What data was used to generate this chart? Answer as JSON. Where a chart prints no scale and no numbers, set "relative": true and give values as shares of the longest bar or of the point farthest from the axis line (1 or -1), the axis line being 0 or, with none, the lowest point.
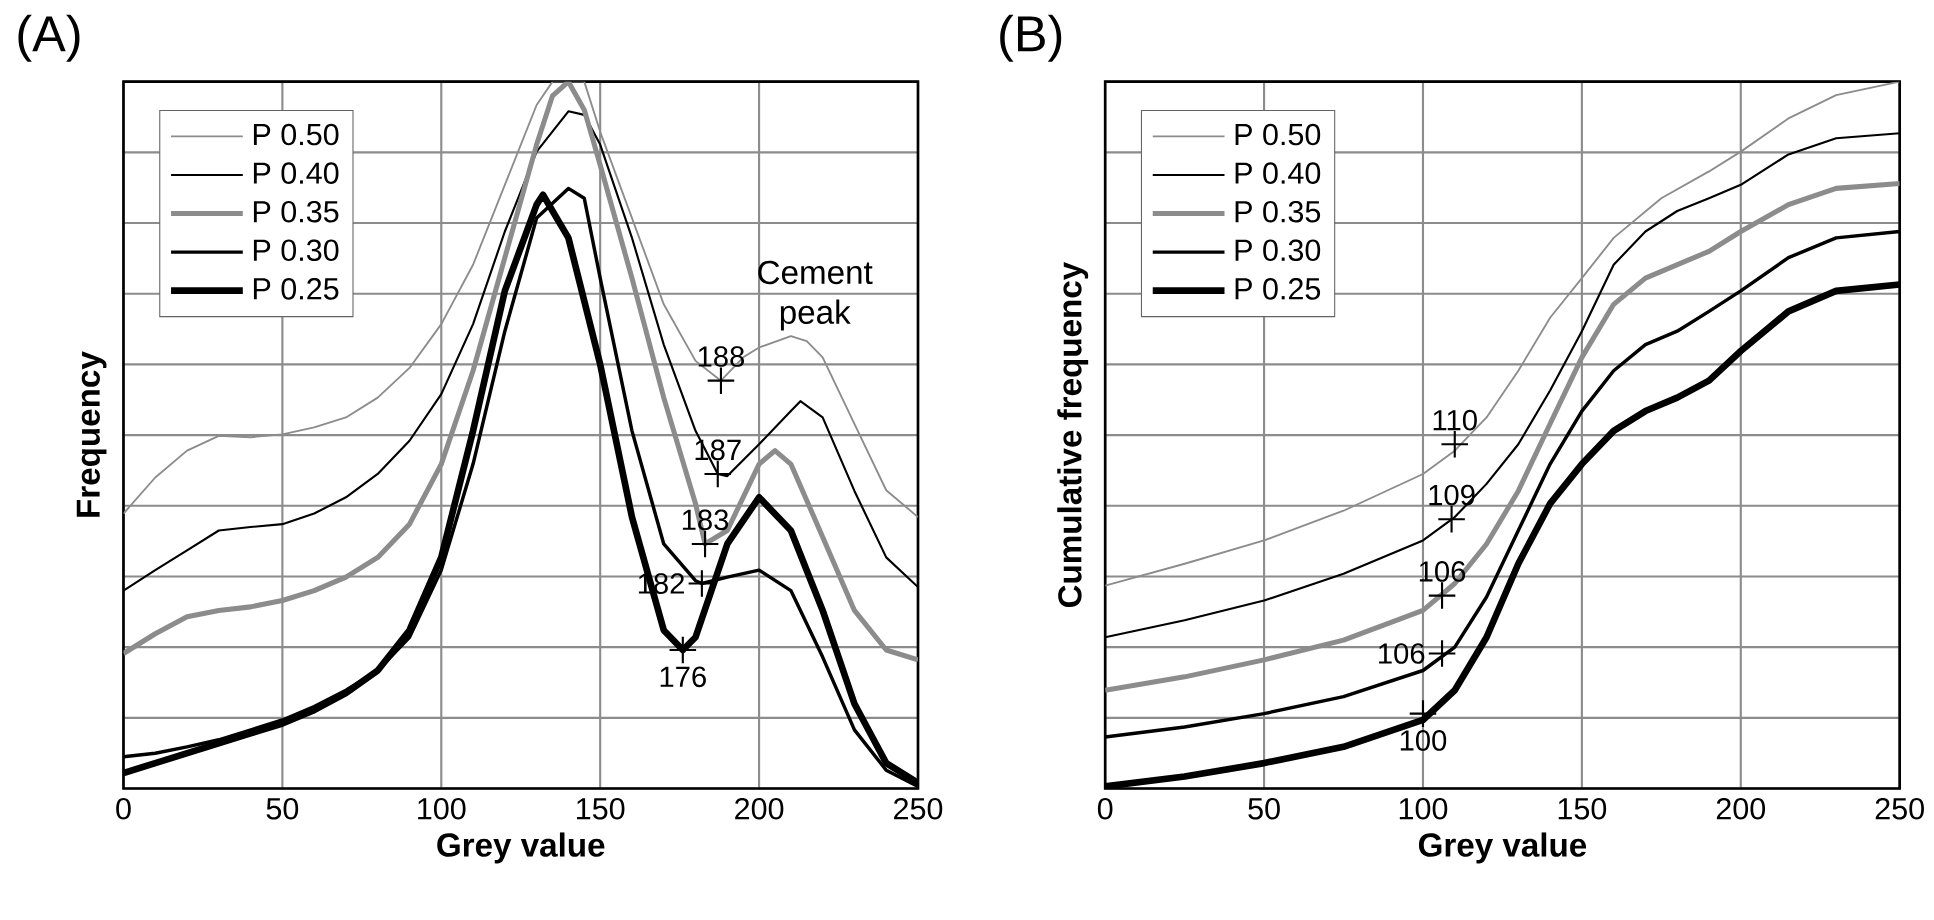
{
  "chart_data": [
    {
      "type": "line",
      "title": "(A)",
      "xlabel": "Grey value",
      "ylabel": "Frequency",
      "relative": true,
      "grid": true,
      "legend": "top left",
      "tick_labels": "x",
      "xlim": [
        0,
        250
      ],
      "xticks": [
        0,
        50,
        100,
        150,
        200,
        250
      ],
      "series": [
        {
          "name": "P 0.50",
          "color": "#8c8c8c",
          "x": [
            0,
            10,
            20,
            30,
            40,
            50,
            60,
            70,
            80,
            90,
            100,
            110,
            120,
            130,
            135,
            140,
            145,
            150,
            160,
            170,
            180,
            188,
            195,
            200,
            210,
            215,
            220,
            230,
            240,
            250
          ],
          "values": [
            0.389,
            0.44,
            0.478,
            0.499,
            0.497,
            0.501,
            0.511,
            0.525,
            0.553,
            0.595,
            0.657,
            0.741,
            0.854,
            0.967,
            1.0,
            1.0,
            1.0,
            0.929,
            0.807,
            0.685,
            0.605,
            0.577,
            0.61,
            0.624,
            0.64,
            0.633,
            0.61,
            0.516,
            0.422,
            0.384
          ]
        },
        {
          "name": "P 0.40",
          "color": "#000000",
          "x": [
            0,
            10,
            20,
            30,
            40,
            50,
            60,
            70,
            80,
            90,
            100,
            110,
            120,
            130,
            140,
            145,
            150,
            160,
            170,
            180,
            187,
            190,
            200,
            210,
            213,
            220,
            230,
            240,
            250
          ],
          "values": [
            0.28,
            0.309,
            0.337,
            0.365,
            0.37,
            0.374,
            0.389,
            0.412,
            0.445,
            0.492,
            0.558,
            0.657,
            0.788,
            0.901,
            0.958,
            0.953,
            0.911,
            0.779,
            0.628,
            0.506,
            0.445,
            0.442,
            0.487,
            0.534,
            0.548,
            0.525,
            0.421,
            0.327,
            0.285
          ]
        },
        {
          "name": "P 0.35",
          "color": "#8c8c8c",
          "x": [
            0,
            10,
            20,
            30,
            40,
            50,
            60,
            70,
            80,
            90,
            100,
            110,
            120,
            130,
            135,
            140,
            145,
            150,
            160,
            170,
            180,
            183,
            190,
            200,
            205,
            210,
            220,
            230,
            240,
            250
          ],
          "values": [
            0.191,
            0.219,
            0.243,
            0.252,
            0.257,
            0.266,
            0.28,
            0.299,
            0.327,
            0.374,
            0.459,
            0.591,
            0.751,
            0.911,
            0.98,
            1.0,
            0.96,
            0.882,
            0.722,
            0.553,
            0.403,
            0.346,
            0.365,
            0.459,
            0.478,
            0.459,
            0.356,
            0.252,
            0.196,
            0.182
          ]
        },
        {
          "name": "P 0.30",
          "color": "#000000",
          "x": [
            0,
            10,
            20,
            30,
            40,
            50,
            60,
            70,
            80,
            90,
            100,
            110,
            120,
            130,
            140,
            145,
            150,
            160,
            170,
            180,
            182,
            190,
            200,
            210,
            220,
            230,
            240,
            250
          ],
          "values": [
            0.045,
            0.05,
            0.059,
            0.069,
            0.083,
            0.097,
            0.116,
            0.139,
            0.167,
            0.214,
            0.309,
            0.459,
            0.647,
            0.807,
            0.849,
            0.835,
            0.722,
            0.506,
            0.346,
            0.294,
            0.29,
            0.299,
            0.309,
            0.28,
            0.186,
            0.083,
            0.026,
            0.003
          ]
        },
        {
          "name": "P 0.25",
          "color": "#000000",
          "x": [
            0,
            10,
            20,
            30,
            40,
            50,
            60,
            70,
            80,
            90,
            100,
            110,
            120,
            130,
            132,
            140,
            150,
            160,
            170,
            176,
            180,
            190,
            200,
            210,
            220,
            230,
            240,
            250
          ],
          "values": [
            0.022,
            0.036,
            0.05,
            0.064,
            0.078,
            0.092,
            0.111,
            0.135,
            0.167,
            0.224,
            0.327,
            0.506,
            0.704,
            0.826,
            0.84,
            0.779,
            0.6,
            0.384,
            0.224,
            0.196,
            0.214,
            0.346,
            0.412,
            0.365,
            0.252,
            0.12,
            0.036,
            0.008
          ]
        }
      ],
      "annotations": [
        "Cement peak",
        {
          "text": "188",
          "x": 188,
          "y": 0.577
        },
        {
          "text": "187",
          "x": 187,
          "y": 0.445
        },
        {
          "text": "183",
          "x": 183,
          "y": 0.346
        },
        {
          "text": "182",
          "x": 182,
          "y": 0.29
        },
        {
          "text": "176",
          "x": 176,
          "y": 0.196
        }
      ]
    },
    {
      "type": "line",
      "title": "(B)",
      "xlabel": "Grey value",
      "ylabel": "Cumulative frequency",
      "relative": true,
      "grid": true,
      "legend": "top left",
      "tick_labels": "x",
      "xlim": [
        0,
        250
      ],
      "xticks": [
        0,
        50,
        100,
        150,
        200,
        250
      ],
      "series": [
        {
          "name": "P 0.50",
          "color": "#8c8c8c",
          "x": [
            0,
            25,
            50,
            75,
            100,
            110,
            120,
            130,
            140,
            150,
            160,
            175,
            190,
            200,
            215,
            230,
            250
          ],
          "values": [
            0.287,
            0.318,
            0.351,
            0.393,
            0.445,
            0.478,
            0.525,
            0.591,
            0.666,
            0.722,
            0.779,
            0.835,
            0.873,
            0.901,
            0.948,
            0.981,
            1.0
          ]
        },
        {
          "name": "P 0.40",
          "color": "#000000",
          "x": [
            0,
            25,
            50,
            75,
            100,
            110,
            120,
            130,
            140,
            150,
            160,
            170,
            180,
            190,
            200,
            215,
            230,
            250
          ],
          "values": [
            0.214,
            0.238,
            0.266,
            0.304,
            0.351,
            0.384,
            0.431,
            0.487,
            0.563,
            0.647,
            0.741,
            0.788,
            0.817,
            0.835,
            0.854,
            0.897,
            0.92,
            0.927
          ]
        },
        {
          "name": "P 0.35",
          "color": "#8c8c8c",
          "x": [
            0,
            25,
            50,
            75,
            100,
            110,
            120,
            130,
            140,
            150,
            160,
            170,
            180,
            190,
            200,
            215,
            230,
            250
          ],
          "values": [
            0.139,
            0.158,
            0.182,
            0.21,
            0.252,
            0.29,
            0.346,
            0.421,
            0.516,
            0.61,
            0.685,
            0.722,
            0.741,
            0.76,
            0.788,
            0.826,
            0.849,
            0.856
          ]
        },
        {
          "name": "P 0.30",
          "color": "#000000",
          "x": [
            0,
            25,
            50,
            75,
            100,
            110,
            120,
            130,
            140,
            150,
            160,
            170,
            180,
            190,
            200,
            215,
            230,
            250
          ],
          "values": [
            0.073,
            0.087,
            0.106,
            0.13,
            0.167,
            0.2,
            0.271,
            0.365,
            0.459,
            0.534,
            0.591,
            0.628,
            0.647,
            0.675,
            0.704,
            0.751,
            0.779,
            0.788
          ]
        },
        {
          "name": "P 0.25",
          "color": "#000000",
          "x": [
            0,
            25,
            50,
            75,
            100,
            110,
            120,
            130,
            140,
            150,
            160,
            170,
            180,
            190,
            200,
            215,
            230,
            250
          ],
          "values": [
            0.003,
            0.017,
            0.036,
            0.059,
            0.097,
            0.139,
            0.214,
            0.318,
            0.403,
            0.459,
            0.506,
            0.534,
            0.553,
            0.577,
            0.619,
            0.675,
            0.704,
            0.713
          ]
        }
      ],
      "annotations": [
        {
          "text": "110",
          "x": 110,
          "y": 0.487
        },
        {
          "text": "109",
          "x": 109,
          "y": 0.381
        },
        {
          "text": "106",
          "x": 106,
          "y": 0.273
        },
        {
          "text": "106",
          "x": 106,
          "y": 0.191
        },
        {
          "text": "100",
          "x": 100,
          "y": 0.106
        }
      ]
    }
  ]
}
